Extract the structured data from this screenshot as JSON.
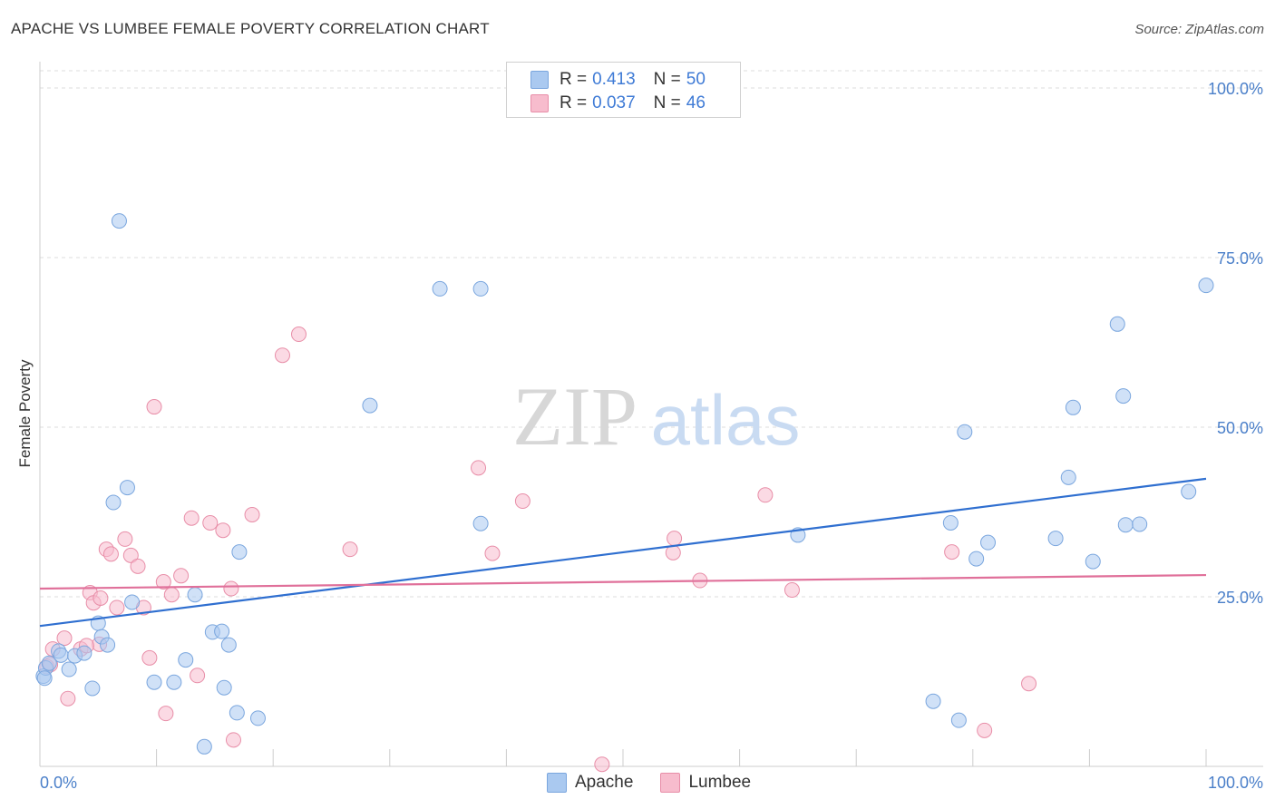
{
  "title": "APACHE VS LUMBEE FEMALE POVERTY CORRELATION CHART",
  "source": "Source: ZipAtlas.com",
  "watermark": {
    "zip": "ZIP",
    "atlas": "atlas"
  },
  "legend": {
    "rows": [
      {
        "r_label": "R = ",
        "r_value": "0.413",
        "n_label": "N = ",
        "n_value": "50"
      },
      {
        "r_label": "R = ",
        "r_value": "0.037",
        "n_label": "N = ",
        "n_value": "46"
      }
    ]
  },
  "bottom_legend": [
    "Apache",
    "Lumbee"
  ],
  "colors": {
    "apache_fill": "#aac9f0",
    "apache_stroke": "#7aa6de",
    "apache_line": "#2f6fd0",
    "lumbee_fill": "#f7bccd",
    "lumbee_stroke": "#e88ea8",
    "lumbee_line": "#e0709a",
    "tick_text": "#4a7fc9",
    "grid": "#dddddd"
  },
  "chart_data": {
    "type": "scatter",
    "title": "APACHE VS LUMBEE FEMALE POVERTY CORRELATION CHART",
    "xlabel": "",
    "ylabel": "Female Poverty",
    "xlim": [
      0,
      100
    ],
    "ylim": [
      0,
      100
    ],
    "x_tick_labels": [
      "0.0%",
      "100.0%"
    ],
    "y_tick_labels": [
      "25.0%",
      "50.0%",
      "75.0%",
      "100.0%"
    ],
    "y_ticks": [
      25,
      50,
      75,
      100
    ],
    "grid": true,
    "legend_position": "top-center",
    "series": [
      {
        "name": "Apache",
        "r": 0.413,
        "n": 50,
        "trend": {
          "x": [
            0,
            100
          ],
          "y": [
            20.7,
            42.4
          ]
        },
        "points": [
          [
            0.3,
            13.3
          ],
          [
            0.5,
            14.5
          ],
          [
            0.8,
            15.2
          ],
          [
            1.6,
            17.0
          ],
          [
            1.8,
            16.4
          ],
          [
            2.5,
            14.3
          ],
          [
            3.0,
            16.3
          ],
          [
            3.8,
            16.7
          ],
          [
            4.5,
            11.5
          ],
          [
            5.0,
            21.1
          ],
          [
            5.3,
            19.1
          ],
          [
            5.8,
            17.9
          ],
          [
            6.3,
            38.9
          ],
          [
            6.8,
            80.4
          ],
          [
            7.5,
            41.1
          ],
          [
            7.9,
            24.2
          ],
          [
            9.8,
            12.4
          ],
          [
            11.5,
            12.4
          ],
          [
            12.5,
            15.7
          ],
          [
            13.3,
            25.3
          ],
          [
            14.1,
            2.9
          ],
          [
            14.8,
            19.8
          ],
          [
            15.6,
            19.9
          ],
          [
            15.8,
            11.6
          ],
          [
            16.2,
            17.9
          ],
          [
            16.9,
            7.9
          ],
          [
            17.1,
            31.6
          ],
          [
            18.7,
            7.1
          ],
          [
            28.3,
            53.2
          ],
          [
            34.3,
            70.4
          ],
          [
            37.8,
            70.4
          ],
          [
            37.8,
            35.8
          ],
          [
            65.0,
            34.1
          ],
          [
            76.6,
            9.6
          ],
          [
            78.1,
            35.9
          ],
          [
            78.8,
            6.8
          ],
          [
            79.3,
            49.3
          ],
          [
            80.3,
            30.6
          ],
          [
            81.3,
            33.0
          ],
          [
            87.1,
            33.6
          ],
          [
            88.2,
            42.6
          ],
          [
            88.6,
            52.9
          ],
          [
            90.3,
            30.2
          ],
          [
            92.4,
            65.2
          ],
          [
            92.9,
            54.6
          ],
          [
            93.1,
            35.6
          ],
          [
            94.3,
            35.7
          ],
          [
            98.5,
            40.5
          ],
          [
            100.0,
            70.9
          ],
          [
            0.4,
            13.0
          ]
        ]
      },
      {
        "name": "Lumbee",
        "r": 0.037,
        "n": 46,
        "trend": {
          "x": [
            0,
            100
          ],
          "y": [
            26.2,
            28.2
          ]
        },
        "points": [
          [
            0.6,
            14.7
          ],
          [
            1.1,
            17.3
          ],
          [
            2.1,
            18.9
          ],
          [
            2.4,
            10.0
          ],
          [
            3.5,
            17.3
          ],
          [
            4.3,
            25.6
          ],
          [
            4.6,
            24.1
          ],
          [
            5.2,
            24.8
          ],
          [
            5.7,
            32.0
          ],
          [
            6.1,
            31.3
          ],
          [
            6.6,
            23.4
          ],
          [
            7.3,
            33.5
          ],
          [
            7.8,
            31.1
          ],
          [
            8.4,
            29.5
          ],
          [
            8.9,
            23.4
          ],
          [
            9.4,
            16.0
          ],
          [
            9.8,
            53.0
          ],
          [
            10.6,
            27.2
          ],
          [
            10.8,
            7.8
          ],
          [
            11.3,
            25.3
          ],
          [
            12.1,
            28.1
          ],
          [
            13.0,
            36.6
          ],
          [
            13.5,
            13.4
          ],
          [
            14.6,
            35.9
          ],
          [
            15.7,
            34.8
          ],
          [
            16.4,
            26.2
          ],
          [
            16.6,
            3.9
          ],
          [
            18.2,
            37.1
          ],
          [
            20.8,
            60.6
          ],
          [
            22.2,
            63.7
          ],
          [
            26.6,
            32.0
          ],
          [
            37.6,
            44.0
          ],
          [
            38.8,
            31.4
          ],
          [
            41.4,
            39.1
          ],
          [
            48.2,
            0.3
          ],
          [
            54.3,
            31.5
          ],
          [
            54.4,
            33.6
          ],
          [
            56.6,
            27.4
          ],
          [
            62.2,
            40.0
          ],
          [
            64.5,
            26.0
          ],
          [
            78.2,
            31.6
          ],
          [
            81.0,
            5.3
          ],
          [
            84.8,
            12.2
          ],
          [
            0.9,
            15.0
          ],
          [
            5.1,
            18.0
          ],
          [
            4.0,
            17.8
          ]
        ]
      }
    ]
  }
}
